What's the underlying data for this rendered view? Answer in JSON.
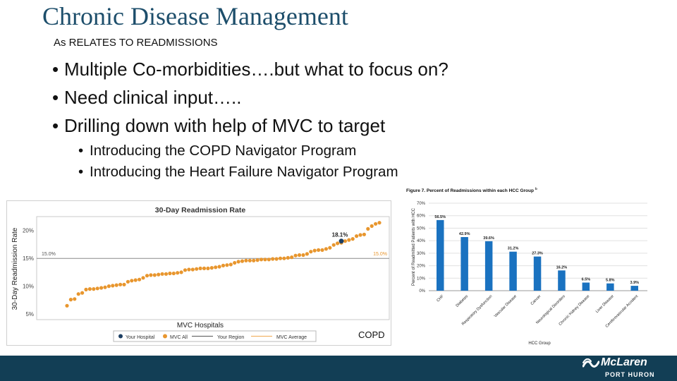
{
  "slide": {
    "title": "Chronic Disease Management",
    "subtitle": "As RELATES TO READMISSIONS",
    "bullets": [
      "Multiple Co-morbidities….but what to focus on?",
      "Need clinical input…..",
      "Drilling down with help of MVC to target"
    ],
    "sub_bullets": [
      "Introducing the COPD Navigator Program",
      "Introducing the Heart Failure Navigator Program"
    ],
    "copd_label": "COPD"
  },
  "footer": {
    "background": "#123e55",
    "logo_name": "McLaren",
    "logo_sub": "PORT HURON",
    "logo_icon": "mclaren-wave-icon"
  },
  "chart_data": [
    {
      "type": "scatter",
      "title": "30-Day Readmission Rate",
      "xlabel": "MVC Hospitals",
      "ylabel": "30-Day Readmission Rate",
      "yticks": [
        "5%",
        "10%",
        "15%",
        "20%"
      ],
      "ylim": [
        4,
        22.5
      ],
      "reference_line": {
        "value": 15.0,
        "left_label": "15.0%",
        "right_label": "15.0%"
      },
      "highlight": {
        "rank": 73,
        "value": 18.1,
        "label": "18.1%"
      },
      "legend": [
        "Your Hospital",
        "MVC All",
        "Your Region",
        "MVC Average"
      ],
      "legend_position": "bottom",
      "colors": {
        "mvc_all": "#e8962e",
        "your_hospital": "#1d3f63",
        "mvc_average": "#f0a850",
        "region": "#555555"
      },
      "values": [
        6.5,
        7.6,
        7.7,
        8.6,
        8.8,
        9.4,
        9.5,
        9.5,
        9.6,
        9.7,
        9.8,
        10.0,
        10.1,
        10.2,
        10.3,
        10.3,
        10.8,
        11.0,
        11.1,
        11.2,
        11.5,
        11.9,
        12.0,
        12.0,
        12.1,
        12.2,
        12.2,
        12.3,
        12.3,
        12.4,
        12.5,
        12.9,
        13.0,
        13.0,
        13.1,
        13.2,
        13.2,
        13.2,
        13.3,
        13.4,
        13.5,
        13.7,
        13.8,
        13.9,
        14.2,
        14.4,
        14.5,
        14.6,
        14.6,
        14.6,
        14.7,
        14.8,
        14.8,
        14.8,
        14.9,
        14.9,
        15.0,
        15.0,
        15.1,
        15.2,
        15.5,
        15.6,
        15.6,
        15.8,
        16.2,
        16.4,
        16.5,
        16.5,
        16.7,
        16.9,
        17.4,
        17.7,
        17.8,
        18.1,
        18.3,
        18.5,
        19.0,
        19.2,
        19.3,
        20.3,
        20.8,
        21.2,
        21.4
      ]
    },
    {
      "type": "bar",
      "title": "Figure 7. Percent of Readmissions within each HCC Group",
      "title_superscript": "b",
      "xlabel": "HCC Group",
      "ylabel": "Percent of Readmitted Patients with HCC",
      "ylim": [
        0,
        70
      ],
      "yticks": [
        "0%",
        "10%",
        "20%",
        "30%",
        "40%",
        "50%",
        "60%",
        "70%"
      ],
      "grid": true,
      "bar_color": "#1a72c0",
      "categories": [
        "CHF",
        "Diabetes",
        "Respiratory Dysfunction",
        "Vascular Disease",
        "Cancer",
        "Neurological Disorders",
        "Chronic Kidney Disease",
        "Liver Disease",
        "Cerebrovascular Accident"
      ],
      "values": [
        56.5,
        42.9,
        39.6,
        31.2,
        27.3,
        16.2,
        6.5,
        5.8,
        3.9
      ],
      "value_labels": [
        "56.5%",
        "42.9%",
        "39.6%",
        "31.2%",
        "27.3%",
        "16.2%",
        "6.5%",
        "5.8%",
        "3.9%"
      ]
    }
  ]
}
